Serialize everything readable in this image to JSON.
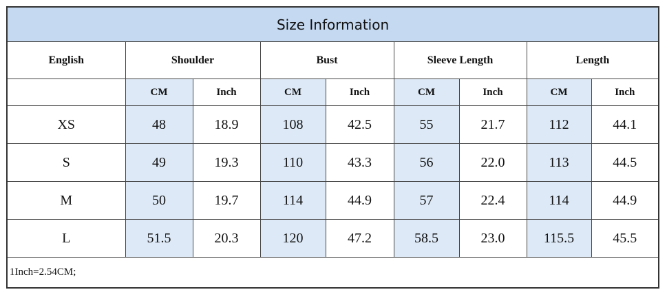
{
  "title": "Size Information",
  "header": [
    "English",
    "Shoulder",
    "Bust",
    "Sleeve Length",
    "Length"
  ],
  "subheader": [
    "CM",
    "Inch",
    "CM",
    "Inch",
    "CM",
    "Inch",
    "CM",
    "Inch"
  ],
  "rows": [
    [
      "XS",
      "48",
      "18.9",
      "108",
      "42.5",
      "55",
      "21.7",
      "112",
      "44.1"
    ],
    [
      "S",
      "49",
      "19.3",
      "110",
      "43.3",
      "56",
      "22.0",
      "113",
      "44.5"
    ],
    [
      "M",
      "50",
      "19.7",
      "114",
      "44.9",
      "57",
      "22.4",
      "114",
      "44.9"
    ],
    [
      "L",
      "51.5",
      "20.3",
      "120",
      "47.2",
      "58.5",
      "23.0",
      "115.5",
      "45.5"
    ]
  ],
  "note": "1Inch=2.54CM;"
}
